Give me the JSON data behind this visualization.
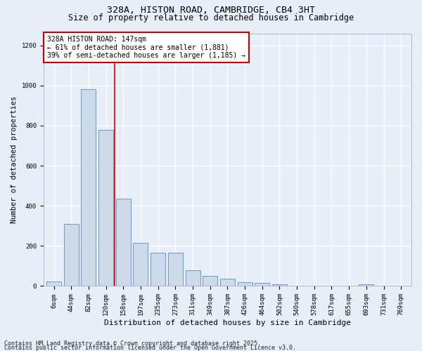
{
  "title1": "328A, HISTON ROAD, CAMBRIDGE, CB4 3HT",
  "title2": "Size of property relative to detached houses in Cambridge",
  "xlabel": "Distribution of detached houses by size in Cambridge",
  "ylabel": "Number of detached properties",
  "categories": [
    "6sqm",
    "44sqm",
    "82sqm",
    "120sqm",
    "158sqm",
    "197sqm",
    "235sqm",
    "273sqm",
    "311sqm",
    "349sqm",
    "387sqm",
    "426sqm",
    "464sqm",
    "502sqm",
    "540sqm",
    "578sqm",
    "617sqm",
    "655sqm",
    "693sqm",
    "731sqm",
    "769sqm"
  ],
  "values": [
    22,
    308,
    980,
    780,
    435,
    215,
    165,
    165,
    80,
    52,
    35,
    18,
    15,
    10,
    0,
    0,
    0,
    0,
    8,
    0,
    0
  ],
  "bar_color": "#ccdaea",
  "bar_edge_color": "#6699cc",
  "background_color": "#e8eef8",
  "grid_color": "#ffffff",
  "vline_x": 3.5,
  "vline_color": "#cc0000",
  "annotation_text": "328A HISTON ROAD: 147sqm\n← 61% of detached houses are smaller (1,881)\n39% of semi-detached houses are larger (1,185) →",
  "annotation_box_color": "#ffffff",
  "annotation_box_edge": "#cc0000",
  "footer1": "Contains HM Land Registry data © Crown copyright and database right 2025.",
  "footer2": "Contains public sector information licensed under the Open Government Licence v3.0.",
  "ylim": [
    0,
    1260
  ],
  "yticks": [
    0,
    200,
    400,
    600,
    800,
    1000,
    1200
  ],
  "title1_fontsize": 9.5,
  "title2_fontsize": 8.5,
  "xlabel_fontsize": 8,
  "ylabel_fontsize": 7.5,
  "tick_fontsize": 6.5,
  "annot_fontsize": 7,
  "footer_fontsize": 6
}
